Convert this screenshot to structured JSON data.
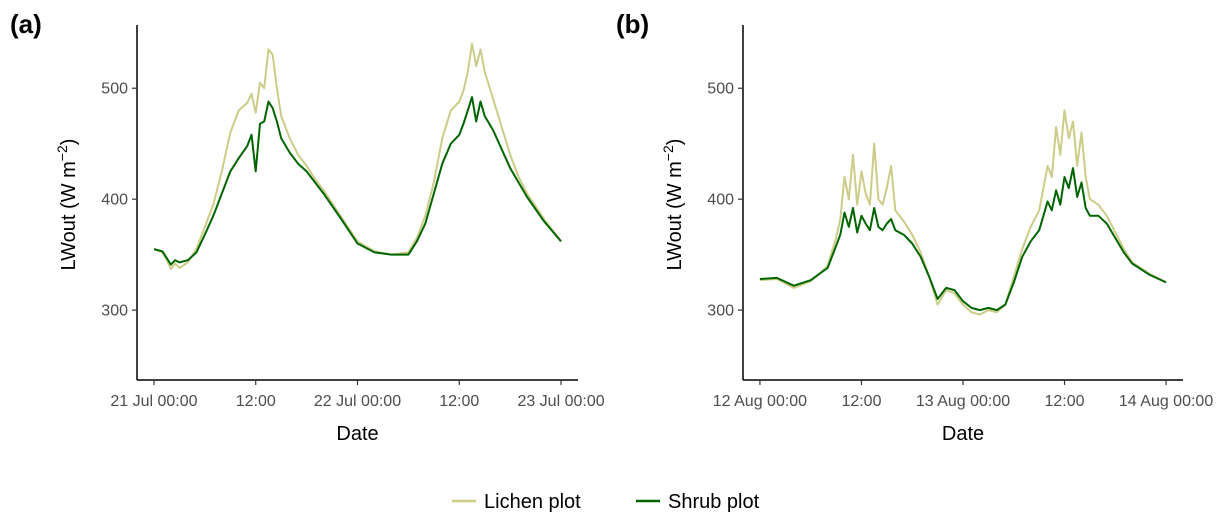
{
  "legend": {
    "items": [
      {
        "label": "Lichen plot",
        "color": "#cccc88"
      },
      {
        "label": "Shrub plot",
        "color": "#006400"
      }
    ]
  },
  "chart_data": [
    {
      "type": "line",
      "panel_label": "(a)",
      "xlabel": "Date",
      "ylabel": "LWout (W m⁻²)",
      "ylabel_parts": {
        "main": "LWout (W m",
        "sup": "−2",
        "end": ")"
      },
      "x_ticks": [
        {
          "x": "2024-07-21T00:00",
          "label": "21 Jul 00:00"
        },
        {
          "x": "2024-07-21T12:00",
          "label": "12:00"
        },
        {
          "x": "2024-07-22T00:00",
          "label": "22 Jul 00:00"
        },
        {
          "x": "2024-07-22T12:00",
          "label": "12:00"
        },
        {
          "x": "2024-07-23T00:00",
          "label": "23 Jul 00:00"
        }
      ],
      "xlim": [
        "2024-07-20T22:00",
        "2024-07-23T02:00"
      ],
      "y_ticks": [
        300,
        400,
        500
      ],
      "ylim": [
        237,
        557
      ],
      "series": [
        {
          "name": "Lichen plot",
          "color": "#cccc88",
          "points": [
            [
              "2024-07-21T00:00",
              355
            ],
            [
              "2024-07-21T01:00",
              352
            ],
            [
              "2024-07-21T01:30",
              345
            ],
            [
              "2024-07-21T02:00",
              337
            ],
            [
              "2024-07-21T02:30",
              342
            ],
            [
              "2024-07-21T03:00",
              338
            ],
            [
              "2024-07-21T04:00",
              343
            ],
            [
              "2024-07-21T05:00",
              355
            ],
            [
              "2024-07-21T06:00",
              375
            ],
            [
              "2024-07-21T07:00",
              395
            ],
            [
              "2024-07-21T08:00",
              425
            ],
            [
              "2024-07-21T09:00",
              460
            ],
            [
              "2024-07-21T10:00",
              480
            ],
            [
              "2024-07-21T11:00",
              487
            ],
            [
              "2024-07-21T11:30",
              495
            ],
            [
              "2024-07-21T12:00",
              478
            ],
            [
              "2024-07-21T12:30",
              505
            ],
            [
              "2024-07-21T13:00",
              500
            ],
            [
              "2024-07-21T13:30",
              535
            ],
            [
              "2024-07-21T14:00",
              530
            ],
            [
              "2024-07-21T14:30",
              500
            ],
            [
              "2024-07-21T15:00",
              475
            ],
            [
              "2024-07-21T16:00",
              455
            ],
            [
              "2024-07-21T17:00",
              440
            ],
            [
              "2024-07-21T18:00",
              430
            ],
            [
              "2024-07-21T19:00",
              418
            ],
            [
              "2024-07-21T20:00",
              408
            ],
            [
              "2024-07-21T22:00",
              385
            ],
            [
              "2024-07-22T00:00",
              362
            ],
            [
              "2024-07-22T02:00",
              353
            ],
            [
              "2024-07-22T04:00",
              350
            ],
            [
              "2024-07-22T06:00",
              352
            ],
            [
              "2024-07-22T07:00",
              365
            ],
            [
              "2024-07-22T08:00",
              385
            ],
            [
              "2024-07-22T09:00",
              415
            ],
            [
              "2024-07-22T10:00",
              455
            ],
            [
              "2024-07-22T11:00",
              480
            ],
            [
              "2024-07-22T12:00",
              488
            ],
            [
              "2024-07-22T12:30",
              498
            ],
            [
              "2024-07-22T13:00",
              515
            ],
            [
              "2024-07-22T13:30",
              540
            ],
            [
              "2024-07-22T14:00",
              520
            ],
            [
              "2024-07-22T14:30",
              535
            ],
            [
              "2024-07-22T15:00",
              515
            ],
            [
              "2024-07-22T16:00",
              490
            ],
            [
              "2024-07-22T17:00",
              465
            ],
            [
              "2024-07-22T18:00",
              440
            ],
            [
              "2024-07-22T19:00",
              420
            ],
            [
              "2024-07-22T20:00",
              405
            ],
            [
              "2024-07-22T22:00",
              382
            ],
            [
              "2024-07-23T00:00",
              362
            ]
          ]
        },
        {
          "name": "Shrub plot",
          "color": "#006400",
          "points": [
            [
              "2024-07-21T00:00",
              355
            ],
            [
              "2024-07-21T01:00",
              353
            ],
            [
              "2024-07-21T01:30",
              347
            ],
            [
              "2024-07-21T02:00",
              341
            ],
            [
              "2024-07-21T02:30",
              345
            ],
            [
              "2024-07-21T03:00",
              343
            ],
            [
              "2024-07-21T04:00",
              345
            ],
            [
              "2024-07-21T05:00",
              352
            ],
            [
              "2024-07-21T06:00",
              368
            ],
            [
              "2024-07-21T07:00",
              385
            ],
            [
              "2024-07-21T08:00",
              405
            ],
            [
              "2024-07-21T09:00",
              425
            ],
            [
              "2024-07-21T10:00",
              437
            ],
            [
              "2024-07-21T11:00",
              448
            ],
            [
              "2024-07-21T11:30",
              458
            ],
            [
              "2024-07-21T12:00",
              425
            ],
            [
              "2024-07-21T12:30",
              468
            ],
            [
              "2024-07-21T13:00",
              470
            ],
            [
              "2024-07-21T13:30",
              488
            ],
            [
              "2024-07-21T14:00",
              482
            ],
            [
              "2024-07-21T14:30",
              470
            ],
            [
              "2024-07-21T15:00",
              455
            ],
            [
              "2024-07-21T16:00",
              442
            ],
            [
              "2024-07-21T17:00",
              432
            ],
            [
              "2024-07-21T18:00",
              425
            ],
            [
              "2024-07-21T19:00",
              415
            ],
            [
              "2024-07-21T20:00",
              405
            ],
            [
              "2024-07-21T22:00",
              383
            ],
            [
              "2024-07-22T00:00",
              360
            ],
            [
              "2024-07-22T02:00",
              352
            ],
            [
              "2024-07-22T04:00",
              350
            ],
            [
              "2024-07-22T06:00",
              350
            ],
            [
              "2024-07-22T07:00",
              362
            ],
            [
              "2024-07-22T08:00",
              378
            ],
            [
              "2024-07-22T09:00",
              405
            ],
            [
              "2024-07-22T10:00",
              432
            ],
            [
              "2024-07-22T11:00",
              450
            ],
            [
              "2024-07-22T12:00",
              458
            ],
            [
              "2024-07-22T12:30",
              468
            ],
            [
              "2024-07-22T13:00",
              480
            ],
            [
              "2024-07-22T13:30",
              492
            ],
            [
              "2024-07-22T14:00",
              470
            ],
            [
              "2024-07-22T14:30",
              488
            ],
            [
              "2024-07-22T15:00",
              475
            ],
            [
              "2024-07-22T16:00",
              462
            ],
            [
              "2024-07-22T17:00",
              445
            ],
            [
              "2024-07-22T18:00",
              428
            ],
            [
              "2024-07-22T19:00",
              415
            ],
            [
              "2024-07-22T20:00",
              402
            ],
            [
              "2024-07-22T22:00",
              380
            ],
            [
              "2024-07-23T00:00",
              362
            ]
          ]
        }
      ]
    },
    {
      "type": "line",
      "panel_label": "(b)",
      "xlabel": "Date",
      "ylabel": "LWout (W m⁻²)",
      "ylabel_parts": {
        "main": "LWout (W m",
        "sup": "−2",
        "end": ")"
      },
      "x_ticks": [
        {
          "x": "2024-08-12T00:00",
          "label": "12 Aug 00:00"
        },
        {
          "x": "2024-08-12T12:00",
          "label": "12:00"
        },
        {
          "x": "2024-08-13T00:00",
          "label": "13 Aug 00:00"
        },
        {
          "x": "2024-08-13T12:00",
          "label": "12:00"
        },
        {
          "x": "2024-08-14T00:00",
          "label": "14 Aug 00:00"
        }
      ],
      "xlim": [
        "2024-08-11T22:00",
        "2024-08-14T02:00"
      ],
      "y_ticks": [
        300,
        400,
        500
      ],
      "ylim": [
        237,
        557
      ],
      "series": [
        {
          "name": "Lichen plot",
          "color": "#cccc88",
          "points": [
            [
              "2024-08-12T00:00",
              327
            ],
            [
              "2024-08-12T02:00",
              328
            ],
            [
              "2024-08-12T04:00",
              320
            ],
            [
              "2024-08-12T06:00",
              326
            ],
            [
              "2024-08-12T08:00",
              340
            ],
            [
              "2024-08-12T09:00",
              365
            ],
            [
              "2024-08-12T09:30",
              382
            ],
            [
              "2024-08-12T10:00",
              420
            ],
            [
              "2024-08-12T10:30",
              400
            ],
            [
              "2024-08-12T11:00",
              440
            ],
            [
              "2024-08-12T11:30",
              395
            ],
            [
              "2024-08-12T12:00",
              425
            ],
            [
              "2024-08-12T12:30",
              405
            ],
            [
              "2024-08-12T13:00",
              395
            ],
            [
              "2024-08-12T13:30",
              450
            ],
            [
              "2024-08-12T14:00",
              400
            ],
            [
              "2024-08-12T14:30",
              395
            ],
            [
              "2024-08-12T15:00",
              410
            ],
            [
              "2024-08-12T15:30",
              430
            ],
            [
              "2024-08-12T16:00",
              390
            ],
            [
              "2024-08-12T17:00",
              380
            ],
            [
              "2024-08-12T18:00",
              368
            ],
            [
              "2024-08-12T19:00",
              352
            ],
            [
              "2024-08-12T20:00",
              330
            ],
            [
              "2024-08-12T21:00",
              305
            ],
            [
              "2024-08-12T22:00",
              318
            ],
            [
              "2024-08-12T23:00",
              315
            ],
            [
              "2024-08-13T00:00",
              305
            ],
            [
              "2024-08-13T01:00",
              298
            ],
            [
              "2024-08-13T02:00",
              296
            ],
            [
              "2024-08-13T03:00",
              300
            ],
            [
              "2024-08-13T04:00",
              298
            ],
            [
              "2024-08-13T05:00",
              305
            ],
            [
              "2024-08-13T06:00",
              330
            ],
            [
              "2024-08-13T07:00",
              355
            ],
            [
              "2024-08-13T08:00",
              375
            ],
            [
              "2024-08-13T09:00",
              390
            ],
            [
              "2024-08-13T09:30",
              410
            ],
            [
              "2024-08-13T10:00",
              430
            ],
            [
              "2024-08-13T10:30",
              420
            ],
            [
              "2024-08-13T11:00",
              465
            ],
            [
              "2024-08-13T11:30",
              440
            ],
            [
              "2024-08-13T12:00",
              480
            ],
            [
              "2024-08-13T12:30",
              455
            ],
            [
              "2024-08-13T13:00",
              470
            ],
            [
              "2024-08-13T13:30",
              430
            ],
            [
              "2024-08-13T14:00",
              460
            ],
            [
              "2024-08-13T14:30",
              420
            ],
            [
              "2024-08-13T15:00",
              400
            ],
            [
              "2024-08-13T16:00",
              395
            ],
            [
              "2024-08-13T17:00",
              385
            ],
            [
              "2024-08-13T18:00",
              370
            ],
            [
              "2024-08-13T19:00",
              355
            ],
            [
              "2024-08-13T20:00",
              343
            ],
            [
              "2024-08-13T22:00",
              333
            ],
            [
              "2024-08-14T00:00",
              325
            ]
          ]
        },
        {
          "name": "Shrub plot",
          "color": "#006400",
          "points": [
            [
              "2024-08-12T00:00",
              328
            ],
            [
              "2024-08-12T02:00",
              329
            ],
            [
              "2024-08-12T04:00",
              322
            ],
            [
              "2024-08-12T06:00",
              327
            ],
            [
              "2024-08-12T08:00",
              338
            ],
            [
              "2024-08-12T09:00",
              358
            ],
            [
              "2024-08-12T09:30",
              368
            ],
            [
              "2024-08-12T10:00",
              388
            ],
            [
              "2024-08-12T10:30",
              375
            ],
            [
              "2024-08-12T11:00",
              392
            ],
            [
              "2024-08-12T11:30",
              370
            ],
            [
              "2024-08-12T12:00",
              385
            ],
            [
              "2024-08-12T12:30",
              378
            ],
            [
              "2024-08-12T13:00",
              372
            ],
            [
              "2024-08-12T13:30",
              392
            ],
            [
              "2024-08-12T14:00",
              375
            ],
            [
              "2024-08-12T14:30",
              372
            ],
            [
              "2024-08-12T15:00",
              378
            ],
            [
              "2024-08-12T15:30",
              382
            ],
            [
              "2024-08-12T16:00",
              372
            ],
            [
              "2024-08-12T17:00",
              368
            ],
            [
              "2024-08-12T18:00",
              360
            ],
            [
              "2024-08-12T19:00",
              348
            ],
            [
              "2024-08-12T20:00",
              330
            ],
            [
              "2024-08-12T21:00",
              310
            ],
            [
              "2024-08-12T22:00",
              320
            ],
            [
              "2024-08-12T23:00",
              318
            ],
            [
              "2024-08-13T00:00",
              308
            ],
            [
              "2024-08-13T01:00",
              302
            ],
            [
              "2024-08-13T02:00",
              300
            ],
            [
              "2024-08-13T03:00",
              302
            ],
            [
              "2024-08-13T04:00",
              300
            ],
            [
              "2024-08-13T05:00",
              305
            ],
            [
              "2024-08-13T06:00",
              325
            ],
            [
              "2024-08-13T07:00",
              348
            ],
            [
              "2024-08-13T08:00",
              362
            ],
            [
              "2024-08-13T09:00",
              372
            ],
            [
              "2024-08-13T09:30",
              385
            ],
            [
              "2024-08-13T10:00",
              398
            ],
            [
              "2024-08-13T10:30",
              390
            ],
            [
              "2024-08-13T11:00",
              408
            ],
            [
              "2024-08-13T11:30",
              395
            ],
            [
              "2024-08-13T12:00",
              420
            ],
            [
              "2024-08-13T12:30",
              410
            ],
            [
              "2024-08-13T13:00",
              428
            ],
            [
              "2024-08-13T13:30",
              402
            ],
            [
              "2024-08-13T14:00",
              415
            ],
            [
              "2024-08-13T14:30",
              392
            ],
            [
              "2024-08-13T15:00",
              385
            ],
            [
              "2024-08-13T16:00",
              385
            ],
            [
              "2024-08-13T17:00",
              378
            ],
            [
              "2024-08-13T18:00",
              365
            ],
            [
              "2024-08-13T19:00",
              352
            ],
            [
              "2024-08-13T20:00",
              342
            ],
            [
              "2024-08-13T22:00",
              332
            ],
            [
              "2024-08-14T00:00",
              325
            ]
          ]
        }
      ]
    }
  ]
}
